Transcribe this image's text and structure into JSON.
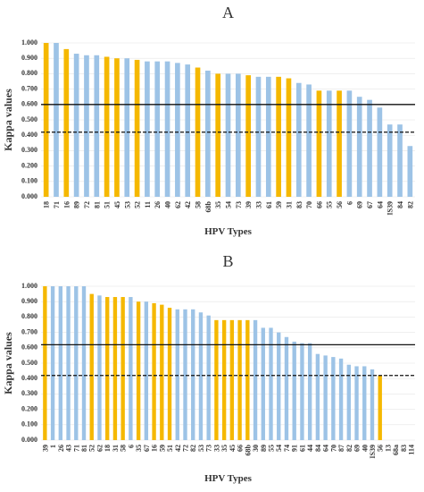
{
  "chart_data": [
    {
      "type": "bar",
      "title": "A",
      "xlabel": "HPV Types",
      "ylabel": "Kappa values",
      "categories": [
        "18",
        "71",
        "16",
        "89",
        "72",
        "81",
        "51",
        "45",
        "53",
        "52",
        "11",
        "26",
        "40",
        "62",
        "42",
        "58",
        "68b",
        "35",
        "54",
        "73",
        "39",
        "33",
        "61",
        "59",
        "31",
        "83",
        "70",
        "66",
        "55",
        "56",
        "6",
        "69",
        "67",
        "64",
        "IS39",
        "84",
        "82"
      ],
      "values": [
        1.0,
        1.0,
        0.96,
        0.93,
        0.92,
        0.92,
        0.91,
        0.9,
        0.9,
        0.89,
        0.88,
        0.88,
        0.88,
        0.87,
        0.86,
        0.84,
        0.82,
        0.8,
        0.8,
        0.8,
        0.79,
        0.78,
        0.78,
        0.78,
        0.77,
        0.74,
        0.73,
        0.69,
        0.69,
        0.69,
        0.69,
        0.65,
        0.63,
        0.58,
        0.47,
        0.47,
        0.33
      ],
      "colors": [
        "#f5b800",
        "#9dc3e6",
        "#f5b800",
        "#9dc3e6",
        "#9dc3e6",
        "#9dc3e6",
        "#f5b800",
        "#f5b800",
        "#9dc3e6",
        "#f5b800",
        "#9dc3e6",
        "#9dc3e6",
        "#9dc3e6",
        "#9dc3e6",
        "#9dc3e6",
        "#f5b800",
        "#9dc3e6",
        "#f5b800",
        "#9dc3e6",
        "#9dc3e6",
        "#f5b800",
        "#9dc3e6",
        "#9dc3e6",
        "#f5b800",
        "#f5b800",
        "#9dc3e6",
        "#9dc3e6",
        "#f5b800",
        "#9dc3e6",
        "#f5b800",
        "#9dc3e6",
        "#9dc3e6",
        "#9dc3e6",
        "#9dc3e6",
        "#9dc3e6",
        "#9dc3e6",
        "#9dc3e6"
      ],
      "ylim": [
        0,
        1
      ],
      "yticks": [
        {
          "value": 0,
          "label": "0.000"
        },
        {
          "value": 0.1,
          "label": "0.100"
        },
        {
          "value": 0.2,
          "label": "0.200"
        },
        {
          "value": 0.3,
          "label": "0.300"
        },
        {
          "value": 0.4,
          "label": "0.400"
        },
        {
          "value": 0.5,
          "label": "0.500"
        },
        {
          "value": 0.6,
          "label": "0.600"
        },
        {
          "value": 0.7,
          "label": "0.700"
        },
        {
          "value": 0.8,
          "label": "0.800"
        },
        {
          "value": 0.9,
          "label": "0.900"
        },
        {
          "value": 1,
          "label": "1.000"
        }
      ],
      "hlines": [
        {
          "value": 0.6,
          "style": "solid"
        },
        {
          "value": 0.42,
          "style": "dashed"
        }
      ]
    },
    {
      "type": "bar",
      "title": "B",
      "xlabel": "HPV Types",
      "ylabel": "Kappa values",
      "categories": [
        "39",
        "1",
        "26",
        "43",
        "71",
        "81",
        "52",
        "62",
        "18",
        "31",
        "58",
        "6",
        "35",
        "67",
        "16",
        "59",
        "51",
        "42",
        "72",
        "82",
        "53",
        "73",
        "33",
        "35",
        "45",
        "66",
        "68b",
        "30",
        "89",
        "55",
        "54",
        "74",
        "91",
        "61",
        "44",
        "84",
        "64",
        "70",
        "87",
        "82",
        "69",
        "40",
        "IS39",
        "56",
        "13",
        "68a",
        "83",
        "114"
      ],
      "values": [
        1.0,
        1.0,
        1.0,
        1.0,
        1.0,
        1.0,
        0.95,
        0.94,
        0.93,
        0.93,
        0.93,
        0.93,
        0.9,
        0.9,
        0.89,
        0.88,
        0.86,
        0.85,
        0.85,
        0.85,
        0.83,
        0.81,
        0.78,
        0.78,
        0.78,
        0.78,
        0.78,
        0.78,
        0.73,
        0.73,
        0.7,
        0.67,
        0.64,
        0.63,
        0.63,
        0.56,
        0.55,
        0.54,
        0.53,
        0.49,
        0.48,
        0.48,
        0.46,
        0.42,
        0,
        0,
        0,
        0
      ],
      "colors": [
        "#f5b800",
        "#9dc3e6",
        "#9dc3e6",
        "#9dc3e6",
        "#9dc3e6",
        "#9dc3e6",
        "#f5b800",
        "#9dc3e6",
        "#f5b800",
        "#f5b800",
        "#f5b800",
        "#9dc3e6",
        "#f5b800",
        "#9dc3e6",
        "#f5b800",
        "#f5b800",
        "#f5b800",
        "#9dc3e6",
        "#9dc3e6",
        "#9dc3e6",
        "#9dc3e6",
        "#9dc3e6",
        "#f5b800",
        "#f5b800",
        "#f5b800",
        "#f5b800",
        "#f5b800",
        "#9dc3e6",
        "#9dc3e6",
        "#9dc3e6",
        "#9dc3e6",
        "#9dc3e6",
        "#9dc3e6",
        "#9dc3e6",
        "#9dc3e6",
        "#9dc3e6",
        "#9dc3e6",
        "#9dc3e6",
        "#9dc3e6",
        "#9dc3e6",
        "#9dc3e6",
        "#9dc3e6",
        "#9dc3e6",
        "#f5b800",
        "#9dc3e6",
        "#9dc3e6",
        "#9dc3e6",
        "#9dc3e6"
      ],
      "ylim": [
        0,
        1
      ],
      "yticks": [
        {
          "value": 0,
          "label": "0.000"
        },
        {
          "value": 0.1,
          "label": "0.100"
        },
        {
          "value": 0.2,
          "label": "0.200"
        },
        {
          "value": 0.3,
          "label": "0.300"
        },
        {
          "value": 0.4,
          "label": "0.400"
        },
        {
          "value": 0.5,
          "label": "0.500"
        },
        {
          "value": 0.6,
          "label": "0.600"
        },
        {
          "value": 0.7,
          "label": "0.700"
        },
        {
          "value": 0.8,
          "label": "0.800"
        },
        {
          "value": 0.9,
          "label": "0.900"
        },
        {
          "value": 1,
          "label": "1.000"
        }
      ],
      "hlines": [
        {
          "value": 0.62,
          "style": "solid"
        },
        {
          "value": 0.42,
          "style": "dashed"
        }
      ]
    }
  ]
}
